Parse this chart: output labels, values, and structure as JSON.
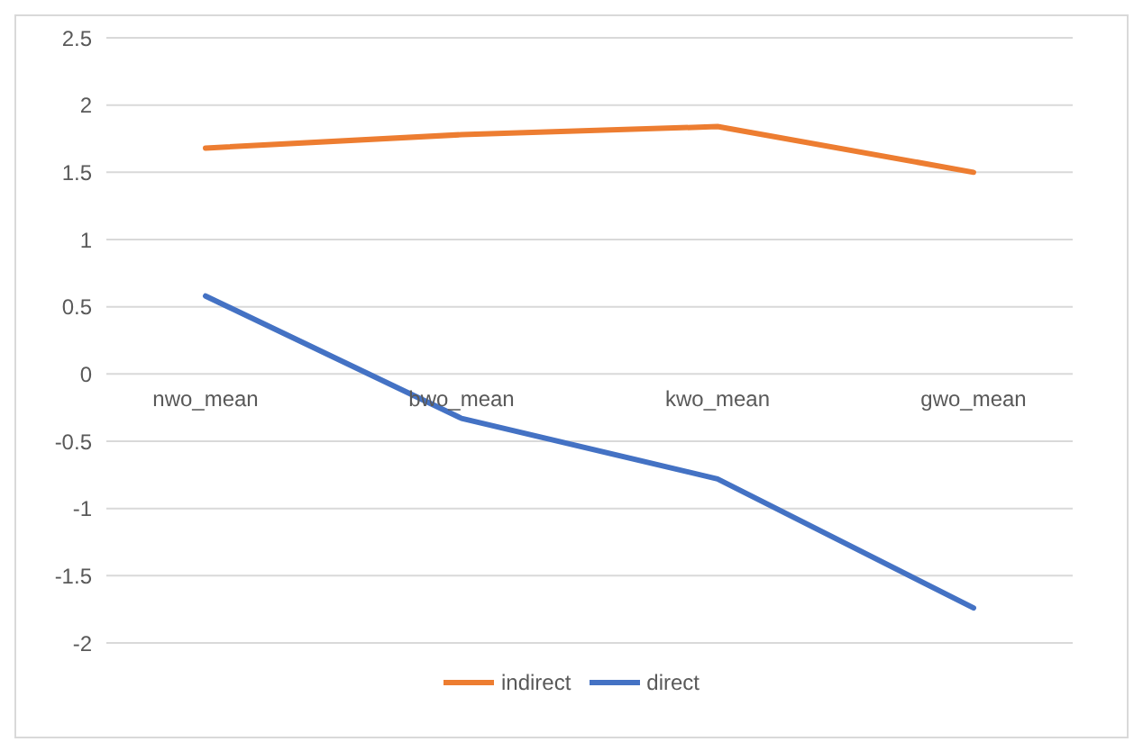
{
  "chart_data": {
    "type": "line",
    "categories": [
      "nwo_mean",
      "bwo_mean",
      "kwo_mean",
      "gwo_mean"
    ],
    "series": [
      {
        "name": "indirect",
        "color": "#ed7d31",
        "values": [
          1.68,
          1.78,
          1.84,
          1.5
        ]
      },
      {
        "name": "direct",
        "color": "#4472c4",
        "values": [
          0.58,
          -0.33,
          -0.78,
          -1.74
        ]
      }
    ],
    "ylim": [
      -2,
      2.5
    ],
    "yticks": [
      -2,
      -1.5,
      -1,
      -0.5,
      0,
      0.5,
      1,
      1.5,
      2,
      2.5
    ],
    "grid": "y",
    "legend": "bottom",
    "marker": "none",
    "line_style": "solid"
  }
}
